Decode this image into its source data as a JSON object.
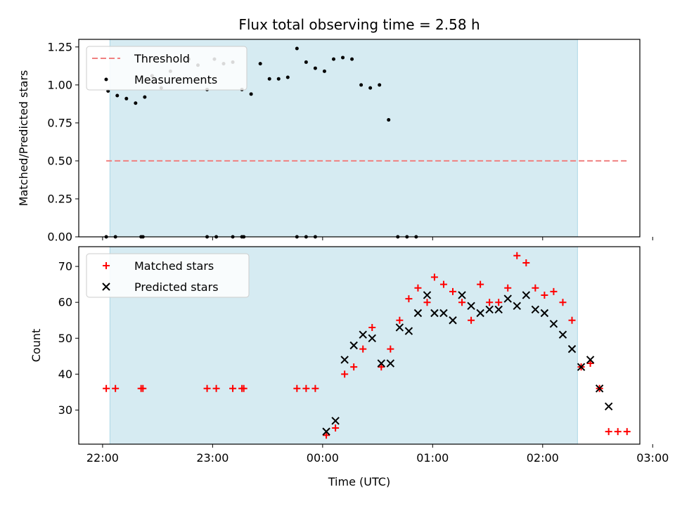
{
  "figure_title": "Flux total observing time = 2.58 h",
  "colors": {
    "threshold": "#f08080",
    "measurement": "#000000",
    "matched": "#ff0000",
    "predicted": "#000000",
    "span": "#add8e6"
  },
  "chart_data": [
    {
      "type": "scatter",
      "title": "",
      "ylabel": "Matched/Predicted stars",
      "xlabel": "",
      "x_unit": "minutes_since_22:00_UTC",
      "xlim": [
        -13,
        293
      ],
      "ylim": [
        0,
        1.3
      ],
      "yticks": [
        0.0,
        0.25,
        0.5,
        0.75,
        1.0,
        1.25
      ],
      "ytick_labels": [
        "0.00",
        "0.25",
        "0.50",
        "0.75",
        "1.00",
        "1.25"
      ],
      "shaded_span": [
        4,
        259
      ],
      "legend": {
        "position": "upper left",
        "entries": [
          {
            "label": "Threshold",
            "style": "dashed-line"
          },
          {
            "label": "Measurements",
            "style": "dot"
          }
        ]
      },
      "series": [
        {
          "name": "Threshold",
          "kind": "line",
          "x": [
            2,
            286
          ],
          "y": [
            0.5,
            0.5
          ]
        },
        {
          "name": "Measurements",
          "kind": "scatter",
          "points": [
            [
              2,
              0
            ],
            [
              7,
              0
            ],
            [
              21,
              0
            ],
            [
              22,
              0
            ],
            [
              57,
              0
            ],
            [
              62,
              0
            ],
            [
              71,
              0
            ],
            [
              76,
              0
            ],
            [
              77,
              0
            ],
            [
              106,
              0
            ],
            [
              111,
              0
            ],
            [
              116,
              0
            ],
            [
              3,
              0.96
            ],
            [
              8,
              0.93
            ],
            [
              13,
              0.91
            ],
            [
              18,
              0.88
            ],
            [
              23,
              0.92
            ],
            [
              27,
              1.06
            ],
            [
              32,
              0.98
            ],
            [
              37,
              1.09
            ],
            [
              42,
              1.04
            ],
            [
              47,
              1.17
            ],
            [
              52,
              1.13
            ],
            [
              57,
              0.97
            ],
            [
              61,
              1.17
            ],
            [
              66,
              1.14
            ],
            [
              71,
              1.15
            ],
            [
              76,
              0.97
            ],
            [
              81,
              0.94
            ],
            [
              86,
              1.14
            ],
            [
              91,
              1.04
            ],
            [
              96,
              1.04
            ],
            [
              101,
              1.05
            ],
            [
              106,
              1.24
            ],
            [
              111,
              1.15
            ],
            [
              116,
              1.11
            ],
            [
              121,
              1.09
            ],
            [
              126,
              1.17
            ],
            [
              131,
              1.18
            ],
            [
              136,
              1.17
            ],
            [
              141,
              1.0
            ],
            [
              146,
              0.98
            ],
            [
              151,
              1.0
            ],
            [
              156,
              0.77
            ],
            [
              161,
              0
            ],
            [
              166,
              0
            ],
            [
              171,
              0
            ]
          ]
        }
      ]
    },
    {
      "type": "scatter",
      "title": "",
      "ylabel": "Count",
      "xlabel": "Time (UTC)",
      "x_unit": "minutes_since_22:00_UTC",
      "xlim": [
        -13,
        293
      ],
      "ylim": [
        20.5,
        75.5
      ],
      "yticks": [
        30,
        40,
        50,
        60,
        70
      ],
      "ytick_labels": [
        "30",
        "40",
        "50",
        "60",
        "70"
      ],
      "xticks": [
        0,
        60,
        120,
        180,
        240,
        300
      ],
      "xtick_labels": [
        "22:00",
        "23:00",
        "00:00",
        "01:00",
        "02:00",
        "03:00"
      ],
      "shaded_span": [
        4,
        259
      ],
      "legend": {
        "position": "upper left",
        "entries": [
          {
            "label": "Matched stars",
            "style": "plus"
          },
          {
            "label": "Predicted stars",
            "style": "x"
          }
        ]
      },
      "series": [
        {
          "name": "Matched stars",
          "kind": "plus",
          "points": [
            [
              2,
              36
            ],
            [
              7,
              36
            ],
            [
              21,
              36
            ],
            [
              22,
              36
            ],
            [
              57,
              36
            ],
            [
              62,
              36
            ],
            [
              71,
              36
            ],
            [
              76,
              36
            ],
            [
              77,
              36
            ],
            [
              106,
              36
            ],
            [
              111,
              36
            ],
            [
              116,
              36
            ],
            [
              122,
              23
            ],
            [
              127,
              25
            ],
            [
              132,
              40
            ],
            [
              137,
              42
            ],
            [
              142,
              47
            ],
            [
              147,
              53
            ],
            [
              152,
              42
            ],
            [
              157,
              47
            ],
            [
              162,
              55
            ],
            [
              167,
              61
            ],
            [
              172,
              64
            ],
            [
              177,
              60
            ],
            [
              181,
              67
            ],
            [
              186,
              65
            ],
            [
              191,
              63
            ],
            [
              196,
              60
            ],
            [
              201,
              55
            ],
            [
              206,
              65
            ],
            [
              211,
              60
            ],
            [
              216,
              60
            ],
            [
              221,
              64
            ],
            [
              226,
              73
            ],
            [
              231,
              71
            ],
            [
              236,
              64
            ],
            [
              241,
              62
            ],
            [
              246,
              63
            ],
            [
              251,
              60
            ],
            [
              256,
              55
            ],
            [
              261,
              42
            ],
            [
              266,
              43
            ],
            [
              271,
              36
            ],
            [
              276,
              24
            ],
            [
              281,
              24
            ],
            [
              286,
              24
            ]
          ]
        },
        {
          "name": "Predicted stars",
          "kind": "x",
          "points": [
            [
              122,
              24
            ],
            [
              127,
              27
            ],
            [
              132,
              44
            ],
            [
              137,
              48
            ],
            [
              142,
              51
            ],
            [
              147,
              50
            ],
            [
              152,
              43
            ],
            [
              157,
              43
            ],
            [
              162,
              53
            ],
            [
              167,
              52
            ],
            [
              172,
              57
            ],
            [
              177,
              62
            ],
            [
              181,
              57
            ],
            [
              186,
              57
            ],
            [
              191,
              55
            ],
            [
              196,
              62
            ],
            [
              201,
              59
            ],
            [
              206,
              57
            ],
            [
              211,
              58
            ],
            [
              216,
              58
            ],
            [
              221,
              61
            ],
            [
              226,
              59
            ],
            [
              231,
              62
            ],
            [
              236,
              58
            ],
            [
              241,
              57
            ],
            [
              246,
              54
            ],
            [
              251,
              51
            ],
            [
              256,
              47
            ],
            [
              261,
              42
            ],
            [
              266,
              44
            ],
            [
              271,
              36
            ],
            [
              276,
              31
            ]
          ]
        }
      ]
    }
  ]
}
